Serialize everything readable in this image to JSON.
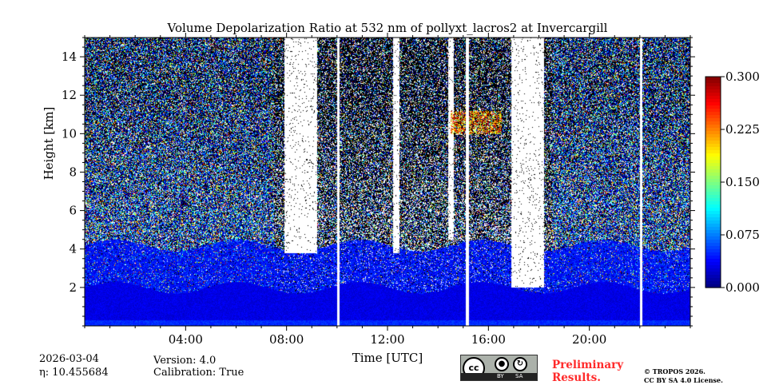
{
  "chart_data": {
    "type": "heatmap",
    "title": "Volume Depolarization Ratio at 532 nm of pollyxt_lacros2 at Invercargill",
    "xlabel": "Time [UTC]",
    "ylabel": "Height [km]",
    "xlim_hours": [
      0,
      24
    ],
    "ylim_km": [
      0,
      15
    ],
    "x_ticks": [
      "04:00",
      "08:00",
      "12:00",
      "16:00",
      "20:00"
    ],
    "x_tick_hours": [
      4,
      8,
      12,
      16,
      20
    ],
    "y_ticks": [
      "2",
      "4",
      "6",
      "8",
      "10",
      "12",
      "14"
    ],
    "y_tick_values": [
      2,
      4,
      6,
      8,
      10,
      12,
      14
    ],
    "colorbar": {
      "colormap": "jet",
      "range": [
        0.0,
        0.3
      ],
      "ticks": [
        "0.000",
        "0.075",
        "0.150",
        "0.225",
        "0.300"
      ],
      "tick_values": [
        0,
        0.075,
        0.15,
        0.225,
        0.3
      ]
    },
    "no_data_gaps_hours": [
      [
        10.0,
        10.1
      ],
      [
        15.1,
        15.2
      ],
      [
        22.0,
        22.1
      ]
    ],
    "features": {
      "boundary_layer_top_km": 2,
      "aerosol_depol_near_surface": 0.03,
      "depolarizing_layer_hours": [
        14.5,
        16.5
      ],
      "depolarizing_layer_km": [
        10,
        11.2
      ]
    }
  },
  "footer": {
    "date": "2026-03-04",
    "eta": "η: 10.455684",
    "version": "Version: 4.0",
    "calibration": "Calibration: True",
    "preliminary_line1": "Preliminary",
    "preliminary_line2": "Results.",
    "copyright_line1": "© TROPOS 2026.",
    "copyright_line2": "CC BY SA 4.0 License.",
    "cc_by": "BY",
    "cc_sa": "SA",
    "cc_logo": "cc"
  }
}
